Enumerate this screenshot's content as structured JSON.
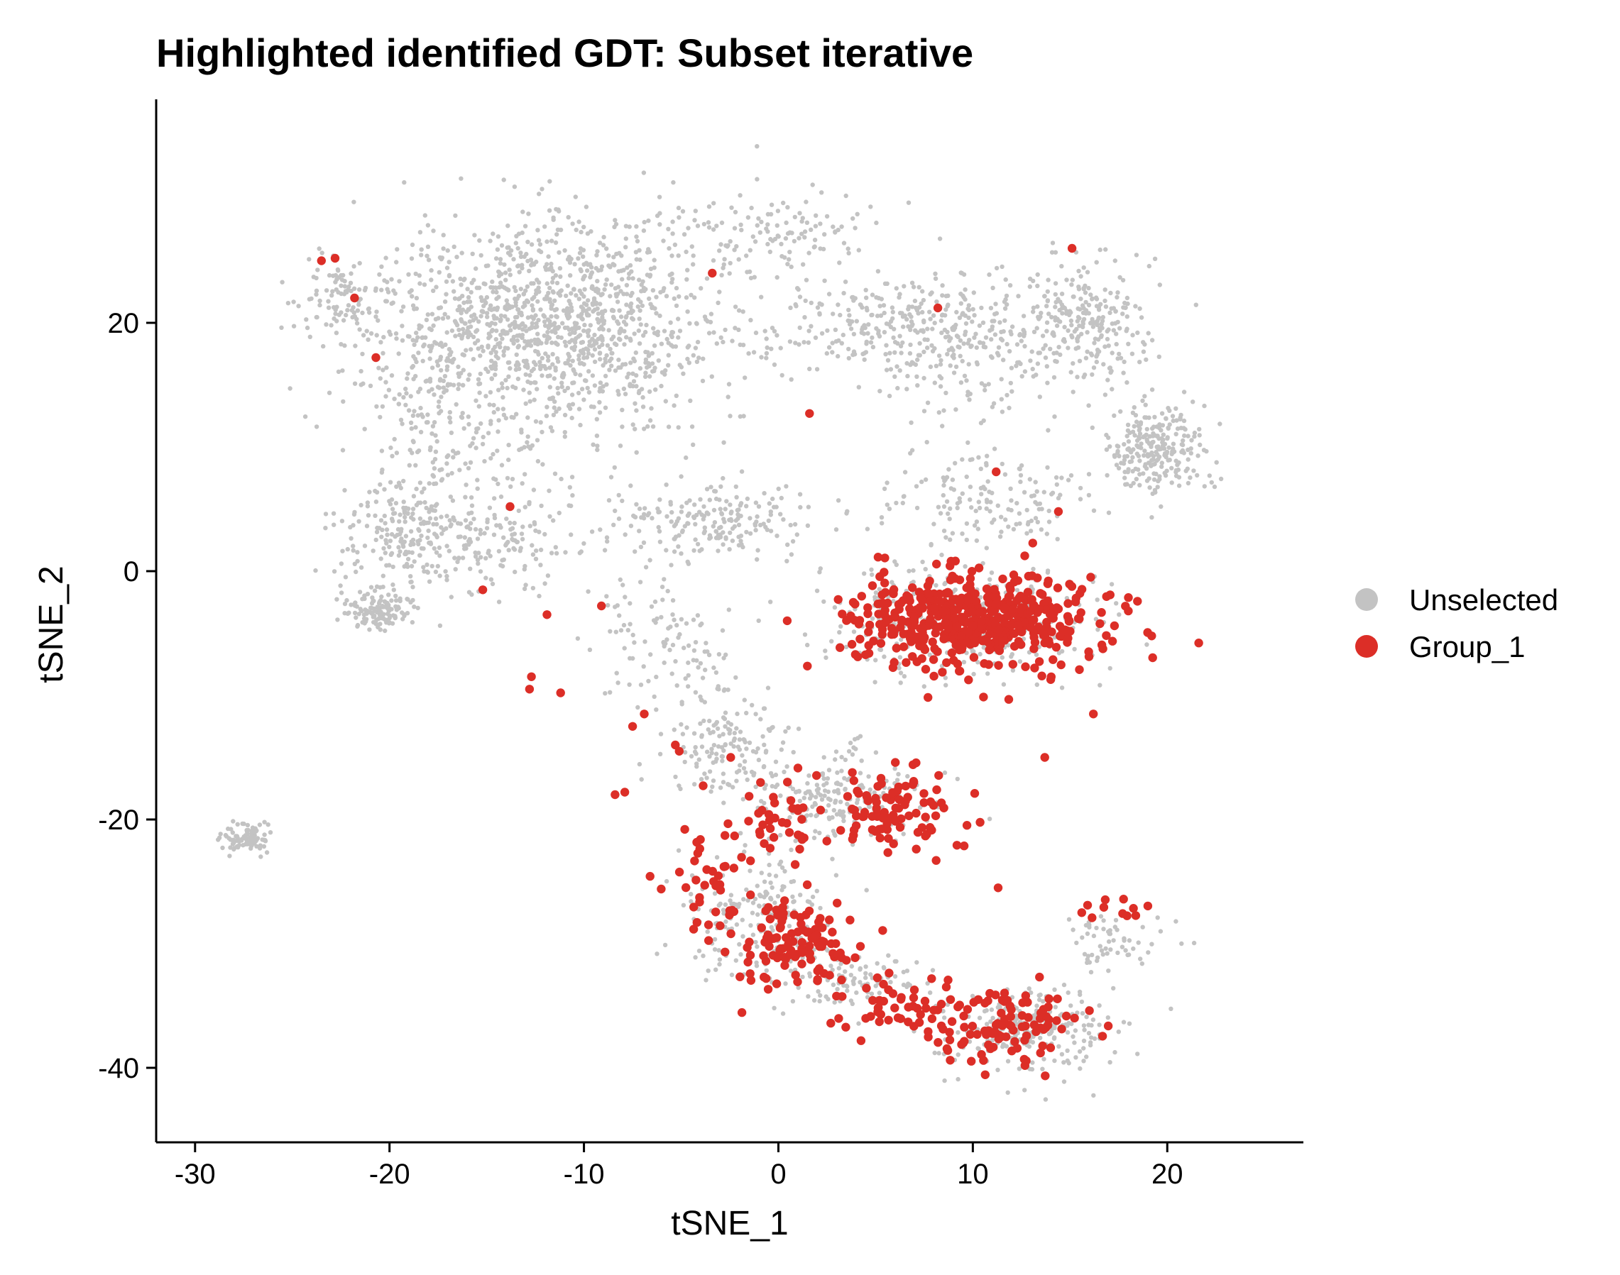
{
  "chart_data": {
    "type": "scatter",
    "title": "Highlighted identified GDT:  Subset iterative",
    "xlabel": "tSNE_1",
    "ylabel": "tSNE_2",
    "xlim": [
      -32,
      27
    ],
    "ylim": [
      -46,
      38
    ],
    "xticks": [
      -30,
      -20,
      -10,
      0,
      10,
      20
    ],
    "yticks": [
      20,
      0,
      -20,
      -40
    ],
    "grid": false,
    "legend_position": "right",
    "series": [
      {
        "name": "Unselected",
        "color": "#c3c3c3",
        "clusters": [
          {
            "cx": -11,
            "cy": 20,
            "sx": 7,
            "sy": 7,
            "n": 1200
          },
          {
            "cx": -17,
            "cy": 14,
            "sx": 4,
            "sy": 7,
            "n": 250
          },
          {
            "cx": -22,
            "cy": 22,
            "sx": 2.5,
            "sy": 3,
            "n": 120
          },
          {
            "cx": -19,
            "cy": 3,
            "sx": 3,
            "sy": 4,
            "n": 220
          },
          {
            "cx": -20.5,
            "cy": -3,
            "sx": 1.5,
            "sy": 1.5,
            "n": 130
          },
          {
            "cx": -14,
            "cy": 3,
            "sx": 4,
            "sy": 4,
            "n": 150
          },
          {
            "cx": -3,
            "cy": 4,
            "sx": 4,
            "sy": 2.5,
            "n": 200
          },
          {
            "cx": 0,
            "cy": 27,
            "sx": 4,
            "sy": 3,
            "n": 120
          },
          {
            "cx": 5,
            "cy": 20,
            "sx": 5,
            "sy": 3,
            "n": 200
          },
          {
            "cx": 10,
            "cy": 18,
            "sx": 4,
            "sy": 5,
            "n": 220
          },
          {
            "cx": 16,
            "cy": 20,
            "sx": 3,
            "sy": 4,
            "n": 250
          },
          {
            "cx": 19.5,
            "cy": 10,
            "sx": 2,
            "sy": 3,
            "n": 250
          },
          {
            "cx": 11,
            "cy": 6,
            "sx": 5,
            "sy": 3,
            "n": 150
          },
          {
            "cx": 9,
            "cy": -4,
            "sx": 6,
            "sy": 4,
            "n": 350
          },
          {
            "cx": -6,
            "cy": -5,
            "sx": 3,
            "sy": 4,
            "n": 100
          },
          {
            "cx": -3,
            "cy": -14,
            "sx": 3,
            "sy": 4,
            "n": 150
          },
          {
            "cx": 3,
            "cy": -18,
            "sx": 4,
            "sy": 3,
            "n": 200
          },
          {
            "cx": -1,
            "cy": -28,
            "sx": 3,
            "sy": 4,
            "n": 200
          },
          {
            "cx": 4,
            "cy": -33,
            "sx": 3,
            "sy": 2,
            "n": 100
          },
          {
            "cx": 13,
            "cy": -37,
            "sx": 4,
            "sy": 3,
            "n": 250
          },
          {
            "cx": 17,
            "cy": -30,
            "sx": 2,
            "sy": 2,
            "n": 60
          },
          {
            "cx": -27.5,
            "cy": -21.5,
            "sx": 1.2,
            "sy": 1,
            "n": 90
          }
        ]
      },
      {
        "name": "Group_1",
        "color": "#dc2e27",
        "clusters": [
          {
            "cx": 10,
            "cy": -4,
            "sx": 5.5,
            "sy": 3,
            "n": 520
          },
          {
            "cx": 6,
            "cy": -19,
            "sx": 2.5,
            "sy": 3,
            "n": 90
          },
          {
            "cx": 0,
            "cy": -20,
            "sx": 2.5,
            "sy": 3,
            "n": 40
          },
          {
            "cx": 1,
            "cy": -30,
            "sx": 2.5,
            "sy": 3,
            "n": 110
          },
          {
            "cx": 6,
            "cy": -35,
            "sx": 3,
            "sy": 2,
            "n": 50
          },
          {
            "cx": 12,
            "cy": -37,
            "sx": 3,
            "sy": 2.5,
            "n": 100
          },
          {
            "cx": -3.5,
            "cy": -25,
            "sx": 1.5,
            "sy": 5,
            "n": 40
          },
          {
            "cx": 17.5,
            "cy": -27,
            "sx": 1.2,
            "sy": 1,
            "n": 10
          }
        ],
        "outliers": [
          [
            -23.5,
            25
          ],
          [
            -22.8,
            25.2
          ],
          [
            -21.8,
            22
          ],
          [
            -20.7,
            17.2
          ],
          [
            -3.4,
            24
          ],
          [
            15.1,
            26
          ],
          [
            8.2,
            21.2
          ],
          [
            1.6,
            12.7
          ],
          [
            11.2,
            8
          ],
          [
            -13.8,
            5.2
          ],
          [
            -15.2,
            -1.5
          ],
          [
            -11.9,
            -3.5
          ],
          [
            -12.7,
            -8.5
          ],
          [
            -12.8,
            -9.5
          ],
          [
            -11.2,
            -9.8
          ],
          [
            -9.1,
            -2.8
          ],
          [
            -8.4,
            -18
          ],
          [
            -7.9,
            -17.8
          ],
          [
            -7.5,
            -12.5
          ],
          [
            -6.9,
            -11.5
          ],
          [
            -5.3,
            -14
          ],
          [
            -5.1,
            -14.5
          ],
          [
            16.2,
            -11.5
          ],
          [
            13.7,
            -15
          ],
          [
            11.3,
            -25.5
          ],
          [
            15.6,
            -27.5
          ],
          [
            14.4,
            4.8
          ]
        ]
      }
    ]
  }
}
